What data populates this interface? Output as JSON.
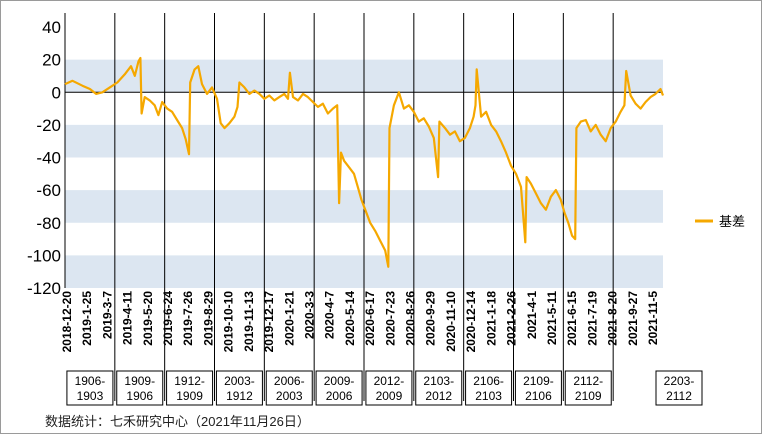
{
  "chart_data": {
    "type": "line",
    "title": "",
    "xlabel": "",
    "ylabel": "",
    "ylim": [
      -120,
      40
    ],
    "yticks": [
      40,
      20,
      0,
      -20,
      -40,
      -60,
      -80,
      -100,
      -120
    ],
    "band_color": "#dce6f1",
    "line_color": "#f5a800",
    "legend": {
      "position": "right",
      "label": "基差"
    },
    "x_tick_labels": [
      "2018-12-20",
      "2019-1-25",
      "2019-3-7",
      "2019-4-11",
      "2019-5-20",
      "2019-6-24",
      "2019-7-26",
      "2019-8-29",
      "2019-10-10",
      "2019-11-13",
      "2019-12-17",
      "2020-1-21",
      "2020-3-3",
      "2020-4-7",
      "2020-5-14",
      "2020-6-17",
      "2020-7-23",
      "2020-8-26",
      "2020-9-29",
      "2020-11-10",
      "2020-12-14",
      "2021-1-18",
      "2021-2-26",
      "2021-4-1",
      "2021-5-11",
      "2021-6-15",
      "2021-7-19",
      "2021-8-20",
      "2021-9-27",
      "2021-11-5"
    ],
    "contract_labels": [
      "1906-1903",
      "1909-1906",
      "1912-1909",
      "2003-1912",
      "2006-2003",
      "2009-2006",
      "2012-2009",
      "2103-2012",
      "2106-2103",
      "2109-2106",
      "2112-2109",
      "2203-2112"
    ],
    "series": [
      {
        "name": "基差",
        "points": [
          [
            0,
            5
          ],
          [
            0.6,
            7
          ],
          [
            1.4,
            4
          ],
          [
            2,
            2
          ],
          [
            2.5,
            -1
          ],
          [
            3,
            0
          ],
          [
            3.6,
            3
          ],
          [
            4.2,
            6
          ],
          [
            4.8,
            11
          ],
          [
            5.3,
            16
          ],
          [
            5.6,
            10
          ],
          [
            5.9,
            19
          ],
          [
            6.05,
            21
          ],
          [
            6.15,
            -13
          ],
          [
            6.4,
            -3
          ],
          [
            6.8,
            -5
          ],
          [
            7.2,
            -8
          ],
          [
            7.5,
            -14
          ],
          [
            7.8,
            -6
          ],
          [
            8.2,
            -10
          ],
          [
            8.6,
            -12
          ],
          [
            9,
            -17
          ],
          [
            9.4,
            -22
          ],
          [
            9.7,
            -29
          ],
          [
            9.95,
            -38
          ],
          [
            10.05,
            6
          ],
          [
            10.4,
            14
          ],
          [
            10.7,
            16
          ],
          [
            11,
            5
          ],
          [
            11.4,
            -1
          ],
          [
            11.8,
            3
          ],
          [
            12.2,
            -4
          ],
          [
            12.5,
            -19
          ],
          [
            12.8,
            -22
          ],
          [
            13.2,
            -19
          ],
          [
            13.6,
            -15
          ],
          [
            13.85,
            -9
          ],
          [
            14.0,
            6
          ],
          [
            14.4,
            3
          ],
          [
            14.8,
            -1
          ],
          [
            15.2,
            1
          ],
          [
            15.6,
            -1
          ],
          [
            16,
            -4
          ],
          [
            16.4,
            -2
          ],
          [
            16.8,
            -5
          ],
          [
            17.2,
            -3
          ],
          [
            17.6,
            -1
          ],
          [
            17.9,
            -4
          ],
          [
            18.05,
            12
          ],
          [
            18.3,
            -3
          ],
          [
            18.7,
            -5
          ],
          [
            19.1,
            -1
          ],
          [
            19.5,
            -3
          ],
          [
            19.9,
            -6
          ],
          [
            20.3,
            -9
          ],
          [
            20.7,
            -7
          ],
          [
            21.1,
            -13
          ],
          [
            21.5,
            -10
          ],
          [
            21.85,
            -8
          ],
          [
            22.0,
            -68
          ],
          [
            22.15,
            -37
          ],
          [
            22.4,
            -42
          ],
          [
            22.8,
            -46
          ],
          [
            23.2,
            -50
          ],
          [
            23.5,
            -58
          ],
          [
            23.8,
            -66
          ],
          [
            24.1,
            -72
          ],
          [
            24.5,
            -80
          ],
          [
            24.9,
            -85
          ],
          [
            25.3,
            -91
          ],
          [
            25.7,
            -97
          ],
          [
            25.95,
            -107
          ],
          [
            26.05,
            -22
          ],
          [
            26.4,
            -8
          ],
          [
            26.8,
            0
          ],
          [
            27.2,
            -10
          ],
          [
            27.6,
            -8
          ],
          [
            28,
            -12
          ],
          [
            28.4,
            -18
          ],
          [
            28.8,
            -16
          ],
          [
            29.2,
            -21
          ],
          [
            29.6,
            -28
          ],
          [
            29.95,
            -52
          ],
          [
            30.05,
            -18
          ],
          [
            30.5,
            -22
          ],
          [
            30.9,
            -26
          ],
          [
            31.3,
            -24
          ],
          [
            31.7,
            -30
          ],
          [
            32.1,
            -28
          ],
          [
            32.5,
            -22
          ],
          [
            32.8,
            -15
          ],
          [
            32.95,
            -8
          ],
          [
            33.05,
            14
          ],
          [
            33.4,
            -15
          ],
          [
            33.8,
            -12
          ],
          [
            34.2,
            -20
          ],
          [
            34.6,
            -24
          ],
          [
            35,
            -30
          ],
          [
            35.4,
            -37
          ],
          [
            35.8,
            -45
          ],
          [
            36.2,
            -50
          ],
          [
            36.6,
            -58
          ],
          [
            36.95,
            -92
          ],
          [
            37.05,
            -52
          ],
          [
            37.4,
            -56
          ],
          [
            37.8,
            -62
          ],
          [
            38.2,
            -68
          ],
          [
            38.6,
            -72
          ],
          [
            39,
            -64
          ],
          [
            39.4,
            -60
          ],
          [
            39.8,
            -66
          ],
          [
            40.1,
            -74
          ],
          [
            40.4,
            -80
          ],
          [
            40.7,
            -88
          ],
          [
            40.95,
            -90
          ],
          [
            41.05,
            -22
          ],
          [
            41.4,
            -18
          ],
          [
            41.8,
            -17
          ],
          [
            42.2,
            -24
          ],
          [
            42.6,
            -20
          ],
          [
            43,
            -26
          ],
          [
            43.4,
            -30
          ],
          [
            43.8,
            -22
          ],
          [
            44.2,
            -18
          ],
          [
            44.6,
            -12
          ],
          [
            44.9,
            -8
          ],
          [
            45.05,
            13
          ],
          [
            45.4,
            -2
          ],
          [
            45.8,
            -7
          ],
          [
            46.2,
            -10
          ],
          [
            46.6,
            -6
          ],
          [
            47,
            -3
          ],
          [
            47.4,
            -1
          ],
          [
            47.8,
            2
          ],
          [
            48,
            -2
          ]
        ]
      }
    ],
    "source_note": "数据统计：七禾研究中心（2021年11月26日）"
  }
}
